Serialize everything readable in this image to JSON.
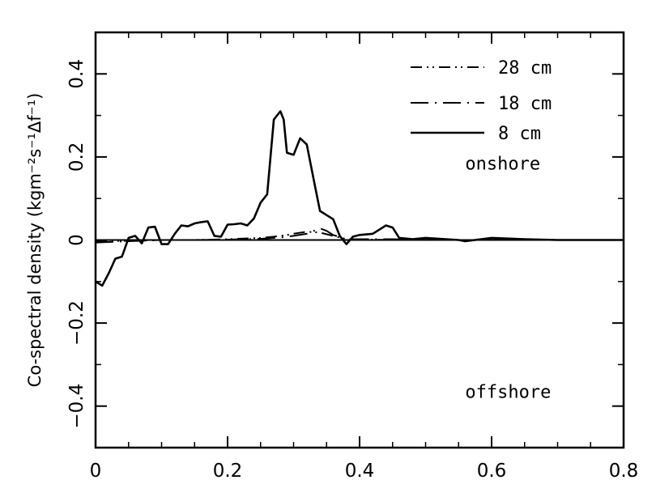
{
  "chart_data": {
    "type": "line",
    "title": "",
    "xlabel": "",
    "ylabel": "Co-spectral density (kgm⁻²s⁻¹Δf⁻¹)",
    "xlim": [
      0,
      0.8
    ],
    "ylim": [
      -0.5,
      0.5
    ],
    "x_ticks": [
      0,
      0.2,
      0.4,
      0.6,
      0.8
    ],
    "x_tick_labels": [
      "0",
      "0.2",
      "0.4",
      "0.6",
      "0.8"
    ],
    "y_ticks": [
      -0.4,
      -0.2,
      0,
      0.2,
      0.4
    ],
    "y_tick_labels": [
      "−0.4",
      "−0.2",
      "0",
      "0.2",
      "0.4"
    ],
    "grid": false,
    "legend_position": "top-right",
    "annotations": [
      {
        "text": "onshore",
        "x": 0.56,
        "y": 0.17
      },
      {
        "text": "offshore",
        "x": 0.56,
        "y": -0.38
      }
    ],
    "zero_line": true,
    "series": [
      {
        "name": "28 cm",
        "style": "dash-dot-dot",
        "x": [
          0,
          0.05,
          0.1,
          0.15,
          0.2,
          0.25,
          0.27,
          0.29,
          0.3,
          0.32,
          0.34,
          0.36,
          0.38,
          0.45,
          0.5,
          0.6,
          0.7,
          0.78
        ],
        "y": [
          -0.003,
          -0.002,
          0,
          0,
          0.002,
          0.005,
          0.008,
          0.012,
          0.015,
          0.02,
          0.018,
          0.01,
          0.002,
          0,
          0,
          0,
          0,
          0
        ]
      },
      {
        "name": "18 cm",
        "style": "long-dash-dot",
        "x": [
          0,
          0.05,
          0.1,
          0.15,
          0.2,
          0.25,
          0.28,
          0.3,
          0.32,
          0.34,
          0.35,
          0.36,
          0.38,
          0.45,
          0.5,
          0.6,
          0.7,
          0.78
        ],
        "y": [
          -0.006,
          -0.003,
          0,
          0,
          0.001,
          0.003,
          0.006,
          0.01,
          0.015,
          0.028,
          0.022,
          0.012,
          0.002,
          0.002,
          0,
          0,
          0,
          0
        ]
      },
      {
        "name": "8 cm",
        "style": "solid",
        "x": [
          0,
          0.01,
          0.02,
          0.03,
          0.04,
          0.05,
          0.06,
          0.07,
          0.08,
          0.09,
          0.1,
          0.11,
          0.12,
          0.13,
          0.14,
          0.15,
          0.16,
          0.17,
          0.18,
          0.19,
          0.2,
          0.21,
          0.22,
          0.23,
          0.24,
          0.25,
          0.26,
          0.27,
          0.28,
          0.285,
          0.29,
          0.3,
          0.31,
          0.32,
          0.33,
          0.34,
          0.35,
          0.36,
          0.37,
          0.38,
          0.39,
          0.4,
          0.42,
          0.44,
          0.45,
          0.46,
          0.48,
          0.5,
          0.55,
          0.56,
          0.6,
          0.65,
          0.7,
          0.75,
          0.8
        ],
        "y": [
          -0.1,
          -0.11,
          -0.08,
          -0.045,
          -0.04,
          0.005,
          0.01,
          -0.008,
          0.03,
          0.032,
          -0.01,
          -0.01,
          0.015,
          0.035,
          0.033,
          0.04,
          0.043,
          0.045,
          0.01,
          0.008,
          0.037,
          0.038,
          0.04,
          0.035,
          0.052,
          0.09,
          0.11,
          0.29,
          0.31,
          0.29,
          0.21,
          0.205,
          0.245,
          0.23,
          0.15,
          0.07,
          0.06,
          0.05,
          0.01,
          -0.01,
          0.008,
          0.012,
          0.015,
          0.035,
          0.03,
          0.005,
          0.002,
          0.005,
          0,
          -0.003,
          0.005,
          0.002,
          0,
          0,
          0
        ]
      }
    ]
  }
}
